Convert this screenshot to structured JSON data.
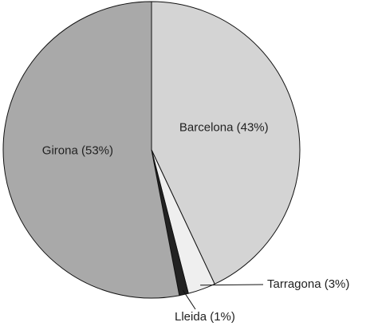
{
  "chart_data": {
    "type": "pie",
    "values": [
      43,
      3,
      1,
      53
    ],
    "value_labels": [
      "Barcelona (43%)",
      "Tarragona (3%)",
      "Lleida (1%)",
      "Girona (53%)"
    ],
    "colors": [
      "#d4d4d4",
      "#efefef",
      "#222222",
      "#a9a9a9"
    ]
  }
}
